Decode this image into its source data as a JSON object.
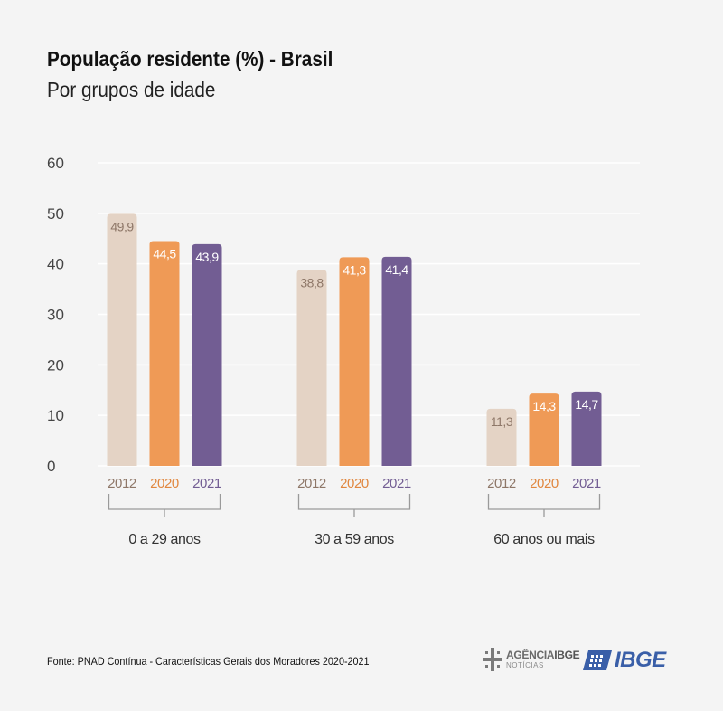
{
  "header": {
    "title": "População residente (%) - Brasil",
    "subtitle": "Por grupos de idade"
  },
  "chart_data": {
    "type": "bar",
    "title": "População residente (%) - Brasil",
    "subtitle": "Por grupos de idade",
    "ylim": [
      0,
      60
    ],
    "yticks": [
      0,
      10,
      20,
      30,
      40,
      50,
      60
    ],
    "grid": true,
    "groups": [
      "0 a 29 anos",
      "30 a 59 anos",
      "60 anos ou mais"
    ],
    "series": [
      {
        "name": "2012",
        "color": "#e4d3c5",
        "label_color": "#8e7768",
        "values": [
          49.9,
          38.8,
          11.3
        ]
      },
      {
        "name": "2020",
        "color": "#ef9a56",
        "label_color": "#e1873f",
        "values": [
          44.5,
          41.3,
          14.3
        ]
      },
      {
        "name": "2021",
        "color": "#725d93",
        "label_color": "#725d93",
        "values": [
          43.9,
          41.4,
          14.7
        ]
      }
    ],
    "value_labels": [
      [
        "49,9",
        "38,8",
        "11,3"
      ],
      [
        "44,5",
        "41,3",
        "14,3"
      ],
      [
        "43,9",
        "41,4",
        "14,7"
      ]
    ]
  },
  "footer": {
    "source": "Fonte: PNAD Contínua - Características Gerais dos Moradores 2020-2021",
    "agencia_label": "AGÊNCIA",
    "agencia_bold": "IBGE",
    "agencia_sub": "NOTÍCIAS",
    "ibge_label": "IBGE"
  },
  "colors": {
    "grid": "#ffffff",
    "axis_text": "#444444",
    "bracket": "#9a9a9a",
    "ibge_blue": "#3a5fa8"
  }
}
